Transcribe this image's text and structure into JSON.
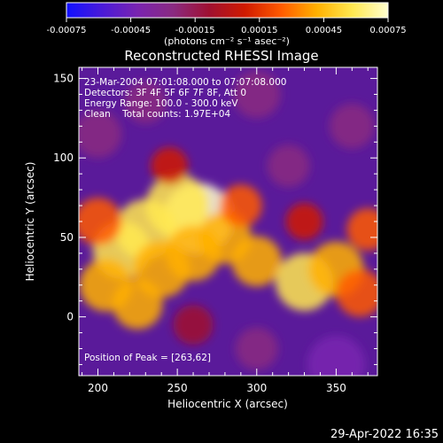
{
  "colorbar": {
    "ticks": [
      "-0.00075",
      "-0.00045",
      "-0.00015",
      "0.00015",
      "0.00045",
      "0.00075"
    ],
    "tick_values": [
      -0.00075,
      -0.00045,
      -0.00015,
      0.00015,
      0.00045,
      0.00075
    ],
    "unit_label": "(photons cm⁻² s⁻¹ asec⁻²)",
    "colors": [
      "#1010ff",
      "#4a1ad8",
      "#7a24b0",
      "#8a2a80",
      "#a01030",
      "#d01a00",
      "#ff5a00",
      "#ffb000",
      "#ffe850",
      "#ffffd0"
    ]
  },
  "chart_data": {
    "type": "heatmap",
    "title": "Reconstructed RHESSI Image",
    "xlabel": "Heliocentric X (arcsec)",
    "ylabel": "Heliocentric Y (arcsec)",
    "xlim": [
      188,
      376
    ],
    "ylim": [
      -37,
      157
    ],
    "xticks": [
      200,
      250,
      300,
      350
    ],
    "yticks": [
      0,
      50,
      100,
      150
    ],
    "peak": [
      263,
      62
    ],
    "info_lines": [
      "23-Mar-2004 07:01:08.000 to 07:07:08.000",
      "Detectors: 3F 4F 5F 6F 7F 8F, Att 0",
      "Energy Range: 100.0 - 300.0 keV",
      "Clean    Total counts: 1.97E+04"
    ],
    "peak_label": "Position of Peak = [263,62]",
    "blobs": [
      {
        "x": 263,
        "y": 62,
        "v": 0.00075
      },
      {
        "x": 250,
        "y": 70,
        "v": 0.0006
      },
      {
        "x": 230,
        "y": 55,
        "v": 0.00055
      },
      {
        "x": 215,
        "y": 42,
        "v": 0.0005
      },
      {
        "x": 240,
        "y": 30,
        "v": 0.00048
      },
      {
        "x": 205,
        "y": 20,
        "v": 0.0004
      },
      {
        "x": 225,
        "y": 8,
        "v": 0.00035
      },
      {
        "x": 260,
        "y": 40,
        "v": 0.00045
      },
      {
        "x": 280,
        "y": 50,
        "v": 0.0004
      },
      {
        "x": 300,
        "y": 35,
        "v": 0.00035
      },
      {
        "x": 330,
        "y": 22,
        "v": 0.0005
      },
      {
        "x": 350,
        "y": 30,
        "v": 0.00045
      },
      {
        "x": 365,
        "y": 15,
        "v": 0.0003
      },
      {
        "x": 200,
        "y": 60,
        "v": 0.0003
      },
      {
        "x": 290,
        "y": 70,
        "v": 0.0002
      },
      {
        "x": 245,
        "y": 95,
        "v": 0.0001
      },
      {
        "x": 230,
        "y": 135,
        "v": -0.0002
      },
      {
        "x": 200,
        "y": 115,
        "v": -0.0003
      },
      {
        "x": 300,
        "y": 140,
        "v": -0.0003
      },
      {
        "x": 320,
        "y": 95,
        "v": -0.0002
      },
      {
        "x": 360,
        "y": 120,
        "v": -0.00025
      },
      {
        "x": 350,
        "y": -30,
        "v": -0.0005
      },
      {
        "x": 300,
        "y": -20,
        "v": -0.0002
      },
      {
        "x": 260,
        "y": -5,
        "v": -0.00015
      },
      {
        "x": 330,
        "y": 60,
        "v": 0.0001
      },
      {
        "x": 370,
        "y": 55,
        "v": 0.0002
      }
    ]
  },
  "footer": {
    "timestamp": "29-Apr-2022 16:35"
  }
}
